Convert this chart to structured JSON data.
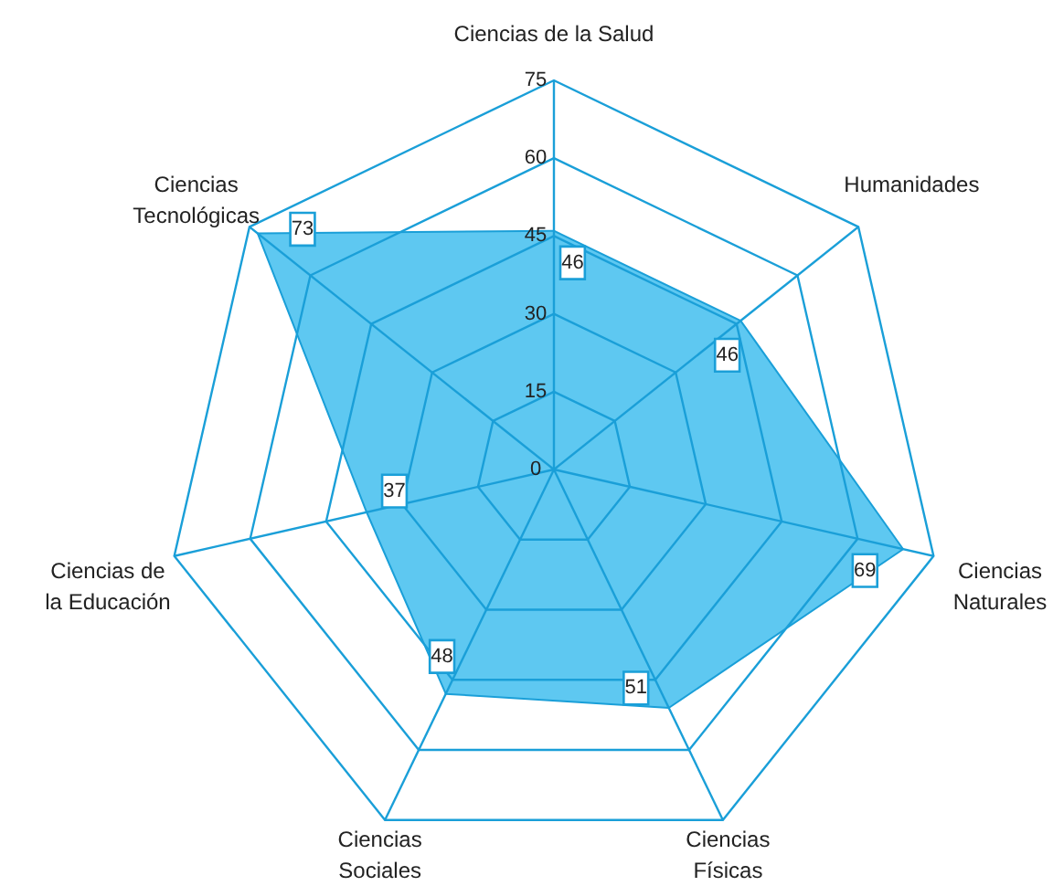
{
  "chart_data": {
    "type": "radar",
    "categories": [
      "Ciencias de la Salud",
      "Humanidades",
      "Ciencias\nNaturales",
      "Ciencias\nFísicas",
      "Ciencias\nSociales",
      "Ciencias de\nla Educación",
      "Ciencias\nTecnológicas"
    ],
    "series": [
      {
        "color": "#55c5f0",
        "values": [
          46,
          46,
          69,
          51,
          48,
          37,
          73
        ]
      }
    ],
    "ylim": [
      0,
      75
    ],
    "yticks": [
      0,
      15,
      30,
      45,
      60,
      75
    ],
    "grid": true,
    "data_labels": true
  }
}
